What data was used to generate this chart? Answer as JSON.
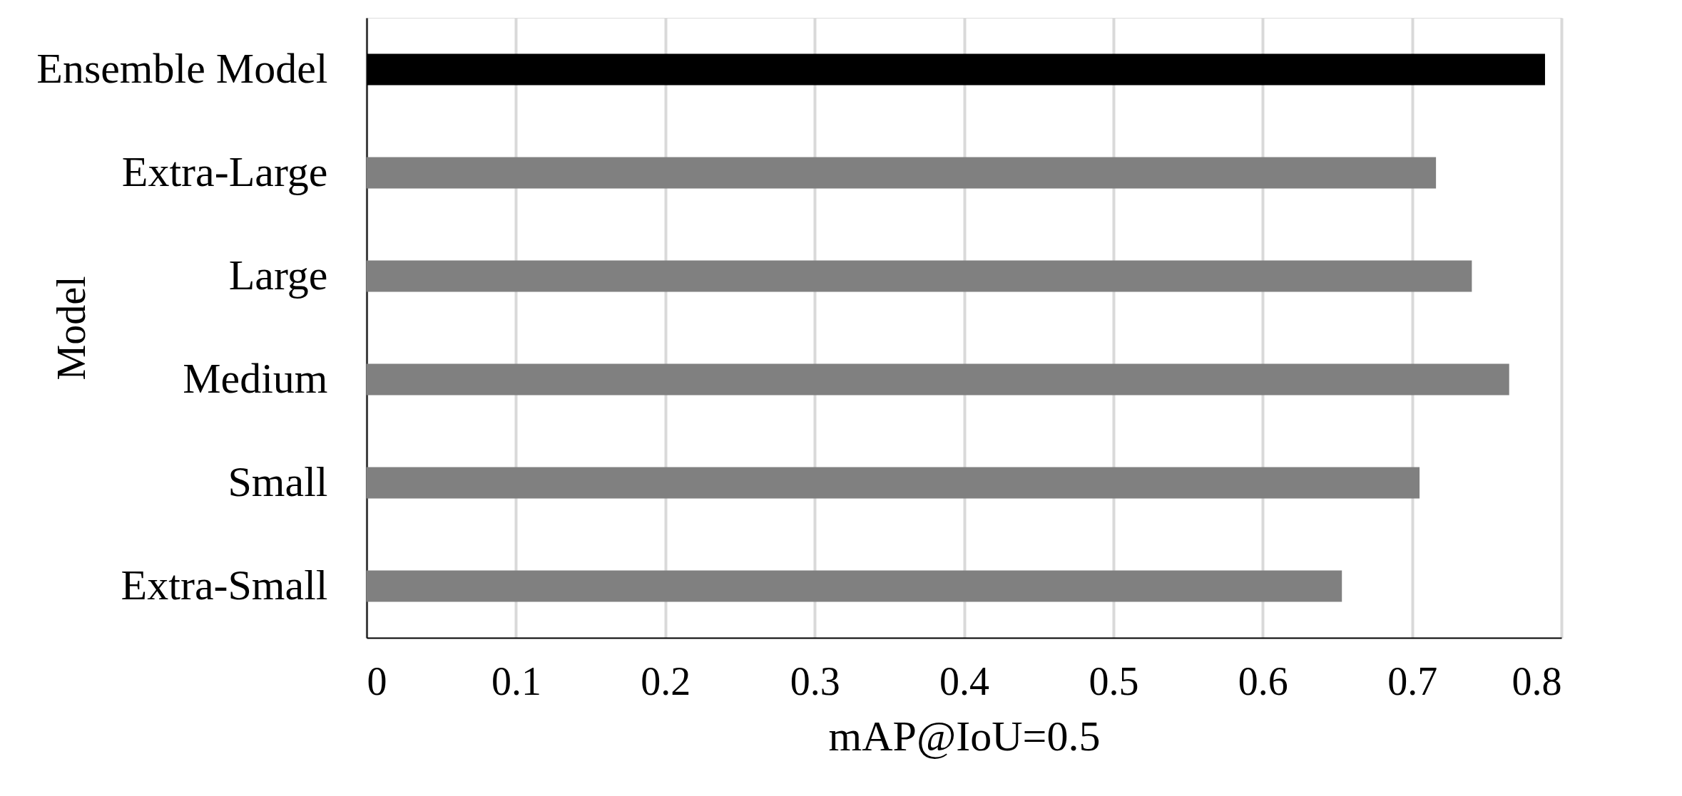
{
  "chart_data": {
    "type": "bar",
    "orientation": "horizontal",
    "categories": [
      "Ensemble Model",
      "Extra-Large",
      "Large",
      "Medium",
      "Small",
      "Extra-Small"
    ],
    "values": [
      0.789,
      0.716,
      0.74,
      0.765,
      0.705,
      0.653
    ],
    "colors": [
      "#000000",
      "#808080",
      "#808080",
      "#808080",
      "#808080",
      "#808080"
    ],
    "xlabel": "mAP@IoU=0.5",
    "ylabel": "Model",
    "xlim": [
      0,
      0.8
    ],
    "xticks": [
      {
        "value": 0,
        "label": "0"
      },
      0.1,
      0.2,
      0.3,
      0.4,
      0.5,
      0.6,
      0.7,
      0.8
    ],
    "grid": "x"
  }
}
